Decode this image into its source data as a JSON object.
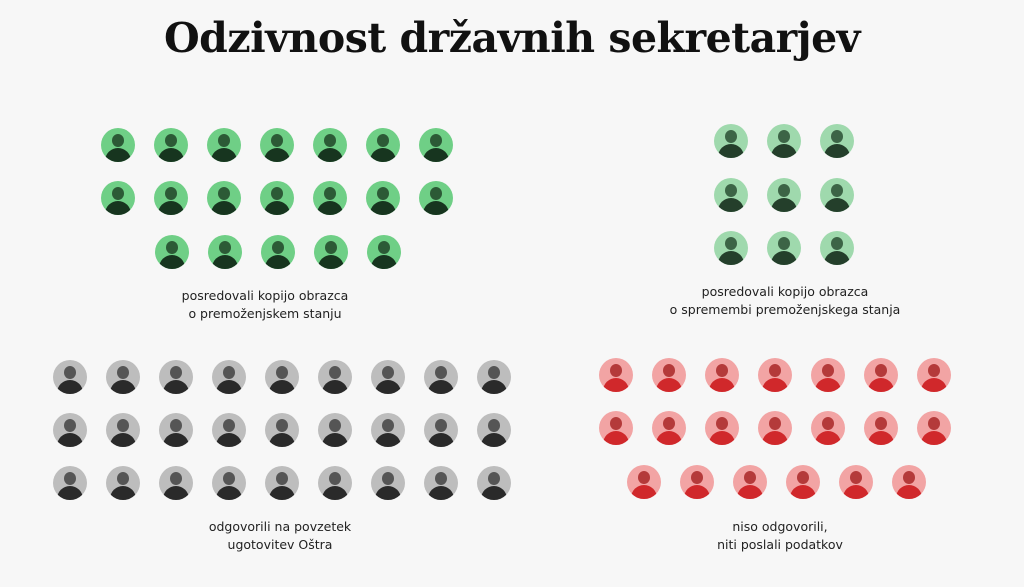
{
  "title": "Odzivnost državnih sekretarjev",
  "groups": [
    {
      "id": "green-left",
      "colors": {
        "bg": "#6fcf86",
        "head": "#2c5a36",
        "body": "#17351f"
      },
      "rows": [
        7,
        7,
        5
      ],
      "caption": [
        "posredovali kopijo obrazca",
        "o premoženjskem stanju"
      ]
    },
    {
      "id": "green-right",
      "colors": {
        "bg": "#9fd9ad",
        "head": "#3c6446",
        "body": "#243f2b"
      },
      "rows": [
        3,
        3,
        3
      ],
      "caption": [
        "posredovali kopijo obrazca",
        "o spremembi premoženjskega stanja"
      ]
    },
    {
      "id": "gray",
      "colors": {
        "bg": "#bdbdbd",
        "head": "#555555",
        "body": "#2a2a2a"
      },
      "rows": [
        9,
        9,
        9
      ],
      "caption": [
        "odgovorili na povzetek",
        "ugotovitev Oštra"
      ]
    },
    {
      "id": "red",
      "colors": {
        "bg": "#f2a4a4",
        "head": "#b43a3a",
        "body": "#d0282b"
      },
      "rows": [
        7,
        7,
        6
      ],
      "caption": [
        "niso odgovorili,",
        "niti poslali podatkov"
      ]
    }
  ]
}
